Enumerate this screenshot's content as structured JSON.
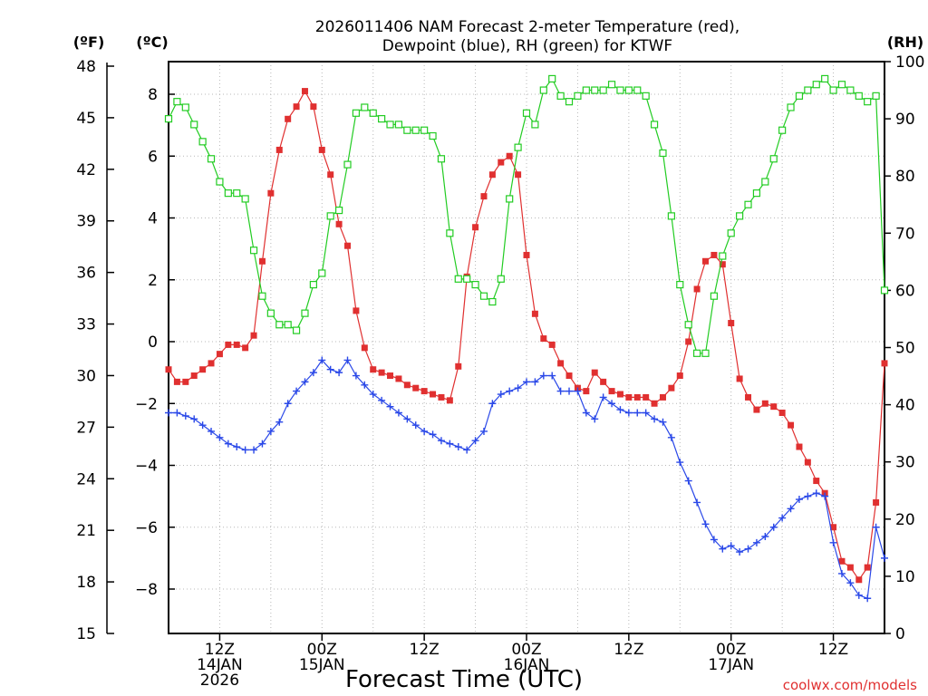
{
  "chart_data": {
    "type": "line",
    "title_lines": [
      "2026011406 NAM Forecast 2-meter Temperature (red),",
      "Dewpoint (blue), RH (green) for KTWF"
    ],
    "xlabel": "Forecast Time (UTC)",
    "credit": "coolwx.com/models",
    "units": {
      "fahrenheit": "(ºF)",
      "celsius": "(ºC)",
      "rh": "(RH)"
    },
    "x_hours_from_init": {
      "start": 0,
      "end": 84,
      "step": 1
    },
    "x_ticks": [
      {
        "hour": 6,
        "lines": [
          "12Z",
          "14JAN",
          "2026"
        ]
      },
      {
        "hour": 18,
        "lines": [
          "00Z",
          "15JAN"
        ]
      },
      {
        "hour": 30,
        "lines": [
          "12Z"
        ]
      },
      {
        "hour": 42,
        "lines": [
          "00Z",
          "16JAN"
        ]
      },
      {
        "hour": 54,
        "lines": [
          "12Z"
        ]
      },
      {
        "hour": 66,
        "lines": [
          "00Z",
          "17JAN"
        ]
      },
      {
        "hour": 78,
        "lines": [
          "12Z"
        ]
      }
    ],
    "left_axis_f": {
      "label": "(ºF)",
      "ylim": [
        15,
        48
      ],
      "ticks": [
        "15",
        "18",
        "21",
        "24",
        "27",
        "30",
        "33",
        "36",
        "39",
        "42",
        "45",
        "48"
      ]
    },
    "inner_axis_c": {
      "label": "(ºC)",
      "ylim": [
        -9.444,
        8.889
      ],
      "ticks": [
        "−8",
        "−6",
        "−4",
        "−2",
        "0",
        "2",
        "4",
        "6",
        "8"
      ]
    },
    "right_axis_rh": {
      "label": "(RH)",
      "ylim": [
        0,
        100
      ],
      "ticks": [
        "0",
        "10",
        "20",
        "30",
        "40",
        "50",
        "60",
        "70",
        "80",
        "90",
        "100"
      ]
    },
    "grid": "dotted",
    "series": [
      {
        "key": "temperature_c",
        "color": "#e03030",
        "marker": "filled-square",
        "values": [
          -0.9,
          -1.3,
          -1.3,
          -1.1,
          -0.9,
          -0.7,
          -0.4,
          -0.1,
          -0.1,
          -0.2,
          0.2,
          2.6,
          4.8,
          6.2,
          7.2,
          7.6,
          8.1,
          7.6,
          6.2,
          5.4,
          3.8,
          3.1,
          1.0,
          -0.2,
          -0.9,
          -1.0,
          -1.1,
          -1.2,
          -1.4,
          -1.5,
          -1.6,
          -1.7,
          -1.8,
          -1.9,
          -0.8,
          2.1,
          3.7,
          4.7,
          5.4,
          5.8,
          6.0,
          5.4,
          2.8,
          0.9,
          0.1,
          -0.1,
          -0.7,
          -1.1,
          -1.5,
          -1.6,
          -1.0,
          -1.3,
          -1.6,
          -1.7,
          -1.8,
          -1.8,
          -1.8,
          -2.0,
          -1.8,
          -1.5,
          -1.1,
          0.0,
          1.7,
          2.6,
          2.8,
          2.5,
          0.6,
          -1.2,
          -1.8,
          -2.2,
          -2.0,
          -2.1,
          -2.3,
          -2.7,
          -3.4,
          -3.9,
          -4.5,
          -4.9,
          -6.0,
          -7.1,
          -7.3,
          -7.7,
          -7.3,
          -5.2,
          -0.7
        ]
      },
      {
        "key": "dewpoint_c",
        "color": "#2a48e8",
        "marker": "plus",
        "values": [
          -2.3,
          -2.3,
          -2.4,
          -2.5,
          -2.7,
          -2.9,
          -3.1,
          -3.3,
          -3.4,
          -3.5,
          -3.5,
          -3.3,
          -2.9,
          -2.6,
          -2.0,
          -1.6,
          -1.3,
          -1.0,
          -0.6,
          -0.9,
          -1.0,
          -0.6,
          -1.1,
          -1.4,
          -1.7,
          -1.9,
          -2.1,
          -2.3,
          -2.5,
          -2.7,
          -2.9,
          -3.0,
          -3.2,
          -3.3,
          -3.4,
          -3.5,
          -3.2,
          -2.9,
          -2.0,
          -1.7,
          -1.6,
          -1.5,
          -1.3,
          -1.3,
          -1.1,
          -1.1,
          -1.6,
          -1.6,
          -1.6,
          -2.3,
          -2.5,
          -1.8,
          -2.0,
          -2.2,
          -2.3,
          -2.3,
          -2.3,
          -2.5,
          -2.6,
          -3.1,
          -3.9,
          -4.5,
          -5.2,
          -5.9,
          -6.4,
          -6.7,
          -6.6,
          -6.8,
          -6.7,
          -6.5,
          -6.3,
          -6.0,
          -5.7,
          -5.4,
          -5.1,
          -5.0,
          -4.9,
          -5.0,
          -6.5,
          -7.5,
          -7.8,
          -8.2,
          -8.3,
          -6.0,
          -7.0
        ]
      },
      {
        "key": "rh_pct",
        "color": "#22cc22",
        "marker": "hollow-square",
        "values": [
          90,
          93,
          92,
          89,
          86,
          83,
          79,
          77,
          77,
          76,
          67,
          59,
          56,
          54,
          54,
          53,
          56,
          61,
          63,
          73,
          74,
          82,
          91,
          92,
          91,
          90,
          89,
          89,
          88,
          88,
          88,
          87,
          83,
          70,
          62,
          62,
          61,
          59,
          58,
          62,
          76,
          85,
          91,
          89,
          95,
          97,
          94,
          93,
          94,
          95,
          95,
          95,
          96,
          95,
          95,
          95,
          94,
          89,
          84,
          73,
          61,
          54,
          49,
          49,
          59,
          66,
          70,
          73,
          75,
          77,
          79,
          83,
          88,
          92,
          94,
          95,
          96,
          97,
          95,
          96,
          95,
          94,
          93,
          94,
          60
        ]
      }
    ]
  }
}
